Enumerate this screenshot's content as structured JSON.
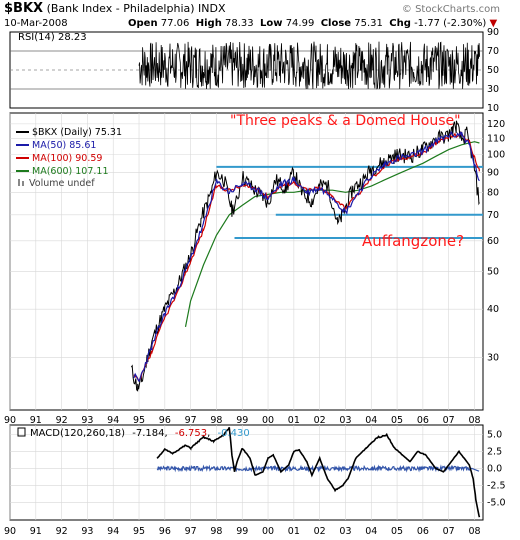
{
  "header": {
    "symbol": "$BKX",
    "name": "(Bank Index - Philadelphia)",
    "exchange": "INDX",
    "date": "10-Mar-2008",
    "open_label": "Open",
    "open": "77.06",
    "high_label": "High",
    "high": "78.33",
    "low_label": "Low",
    "low": "74.99",
    "close_label": "Close",
    "close": "75.31",
    "chg_label": "Chg",
    "chg": "-1.77 (-2.30%)",
    "watermark": "© StockCharts.com"
  },
  "colors": {
    "price": "#000000",
    "ma50": "#1a1aa8",
    "ma100": "#d00000",
    "ma600": "#1d7a1d",
    "annotation": "#ff1a1a",
    "support_line": "#3399cc",
    "macd": "#000000",
    "macd_signal": "#d00000",
    "macd_hist": "#3355aa",
    "grid": "#d8d8d8",
    "frame": "#000000"
  },
  "annotations": {
    "title": "\"Three peaks & a Domed House\"",
    "zone": "Auffangzone?"
  },
  "chart_data": [
    {
      "type": "line",
      "panel": "rsi",
      "legend": "RSI(14) 28.23",
      "ylim": [
        10,
        90
      ],
      "yticks": [
        90,
        70,
        50,
        30,
        10
      ],
      "reference_levels": [
        70,
        50,
        30
      ],
      "x_range": [
        1995.0,
        2008.2
      ],
      "band": [
        30,
        80
      ],
      "series": [
        {
          "name": "RSI(14)",
          "last": 28.23
        }
      ]
    },
    {
      "type": "line",
      "panel": "price",
      "log_scale": true,
      "ylim": [
        22,
        128
      ],
      "yticks": [
        120,
        110,
        100,
        90,
        80,
        70,
        60,
        50,
        40,
        30
      ],
      "legend": [
        {
          "label": "$BKX (Daily) 75.31",
          "color": "#000000"
        },
        {
          "label": "MA(50) 85.61",
          "color": "#1a1aa8"
        },
        {
          "label": "MA(100) 90.59",
          "color": "#d00000"
        },
        {
          "label": "MA(600) 107.11",
          "color": "#1d7a1d"
        },
        {
          "label": "Volume undef",
          "color": "#888888"
        }
      ],
      "series": [
        {
          "name": "$BKX (Daily)",
          "x": [
            1994.7,
            1994.95,
            1995.1,
            1995.5,
            1996.0,
            1996.5,
            1997.0,
            1997.4,
            1997.8,
            1998.0,
            1998.3,
            1998.6,
            1998.8,
            1999.0,
            1999.4,
            1999.8,
            2000.0,
            2000.3,
            2000.7,
            2001.0,
            2001.3,
            2001.7,
            2002.0,
            2002.3,
            2002.7,
            2002.85,
            2003.0,
            2003.3,
            2003.7,
            2004.0,
            2004.5,
            2005.0,
            2005.5,
            2006.0,
            2006.5,
            2007.0,
            2007.15,
            2007.3,
            2007.5,
            2007.7,
            2007.9,
            2008.0,
            2008.1,
            2008.19
          ],
          "y": [
            28,
            25,
            26,
            33,
            40,
            46,
            55,
            68,
            80,
            90,
            86,
            72,
            76,
            88,
            82,
            78,
            75,
            86,
            82,
            90,
            80,
            76,
            83,
            84,
            66,
            69,
            73,
            82,
            86,
            92,
            96,
            100,
            99,
            103,
            110,
            112,
            116,
            119,
            109,
            113,
            100,
            92,
            82,
            75.31
          ]
        },
        {
          "name": "MA(50)",
          "x": [
            1994.8,
            1995.0,
            1995.5,
            1996.0,
            1996.5,
            1997.0,
            1997.5,
            1998.0,
            1998.5,
            1999.0,
            1999.5,
            2000.0,
            2000.5,
            2001.0,
            2001.5,
            2002.0,
            2002.5,
            2003.0,
            2003.5,
            2004.0,
            2004.5,
            2005.0,
            2005.5,
            2006.0,
            2006.5,
            2007.0,
            2007.5,
            2007.8,
            2008.0,
            2008.19
          ],
          "y": [
            27,
            26,
            32,
            39,
            45,
            54,
            66,
            85,
            80,
            84,
            82,
            77,
            84,
            86,
            80,
            82,
            78,
            71,
            80,
            88,
            94,
            98,
            99,
            102,
            108,
            112,
            113,
            106,
            94,
            85.61
          ]
        },
        {
          "name": "MA(100)",
          "x": [
            1994.8,
            1995.0,
            1995.5,
            1996.0,
            1996.5,
            1997.0,
            1997.5,
            1998.0,
            1998.5,
            1999.0,
            1999.5,
            2000.0,
            2000.5,
            2001.0,
            2001.5,
            2002.0,
            2002.5,
            2003.0,
            2003.5,
            2004.0,
            2004.5,
            2005.0,
            2005.5,
            2006.0,
            2006.5,
            2007.0,
            2007.5,
            2007.8,
            2008.0,
            2008.19
          ],
          "y": [
            27,
            26,
            31,
            38,
            44,
            53,
            64,
            83,
            81,
            83,
            82,
            78,
            83,
            85,
            81,
            82,
            78,
            73,
            79,
            87,
            93,
            97,
            99,
            101,
            107,
            111,
            113,
            108,
            98,
            90.59
          ]
        },
        {
          "name": "MA(600)",
          "x": [
            1996.8,
            1997.0,
            1997.5,
            1998.0,
            1998.5,
            1999.0,
            1999.5,
            2000.0,
            2000.5,
            2001.0,
            2001.5,
            2002.0,
            2002.5,
            2003.0,
            2003.5,
            2004.0,
            2004.5,
            2005.0,
            2005.5,
            2006.0,
            2006.5,
            2007.0,
            2007.5,
            2008.0,
            2008.19
          ],
          "y": [
            36,
            42,
            52,
            62,
            70,
            74,
            78,
            79,
            80,
            80,
            81,
            81,
            81,
            80,
            81,
            83,
            86,
            89,
            92,
            95,
            99,
            103,
            106,
            108,
            107.11
          ]
        }
      ],
      "support_lines": [
        93,
        70,
        61
      ]
    },
    {
      "type": "line",
      "panel": "macd",
      "legend": {
        "label": "MACD(120,260,18)",
        "macd": "-7.184",
        "signal": "-6.753",
        "hist": "-0.430"
      },
      "ylim": [
        -7.6,
        6.4
      ],
      "yticks": [
        5.0,
        2.5,
        0.0,
        -2.5,
        -5.0
      ],
      "series": [
        {
          "name": "MACD",
          "x": [
            1995.7,
            1996.0,
            1996.3,
            1996.8,
            1997.0,
            1997.5,
            1997.9,
            1998.3,
            1998.5,
            1998.6,
            1998.7,
            1998.8,
            1999.0,
            1999.3,
            1999.5,
            1999.8,
            2000.0,
            2000.2,
            2000.5,
            2000.8,
            2001.0,
            2001.2,
            2001.5,
            2001.7,
            2002.0,
            2002.3,
            2002.6,
            2002.9,
            2003.1,
            2003.4,
            2003.8,
            2004.2,
            2004.6,
            2004.9,
            2005.2,
            2005.5,
            2005.8,
            2006.1,
            2006.5,
            2006.8,
            2007.1,
            2007.4,
            2007.6,
            2007.8,
            2007.95,
            2008.05,
            2008.19
          ],
          "y": [
            1.5,
            2.8,
            2.2,
            3.4,
            3.0,
            4.6,
            4.0,
            5.0,
            6.0,
            2.0,
            -0.5,
            1.0,
            3.0,
            1.5,
            -1.0,
            -0.5,
            1.5,
            2.0,
            -0.5,
            0.5,
            2.5,
            2.8,
            1.0,
            -1.0,
            1.5,
            -1.5,
            -3.2,
            -2.5,
            -1.5,
            1.5,
            3.0,
            4.5,
            5.0,
            3.0,
            2.0,
            1.0,
            2.5,
            2.0,
            0.0,
            -0.5,
            1.0,
            2.5,
            1.5,
            0.5,
            -1.5,
            -4.5,
            -7.184
          ]
        }
      ],
      "histogram": {
        "name": "Histogram",
        "x_start": 1995.7,
        "x_end": 2008.19,
        "amplitude": 0.3,
        "last": -0.43
      }
    }
  ],
  "x_axis": {
    "labels": [
      "90",
      "91",
      "92",
      "93",
      "94",
      "95",
      "96",
      "97",
      "98",
      "99",
      "00",
      "01",
      "02",
      "03",
      "04",
      "05",
      "06",
      "07",
      "08"
    ],
    "years": [
      1990,
      1991,
      1992,
      1993,
      1994,
      1995,
      1996,
      1997,
      1998,
      1999,
      2000,
      2001,
      2002,
      2003,
      2004,
      2005,
      2006,
      2007,
      2008
    ]
  }
}
